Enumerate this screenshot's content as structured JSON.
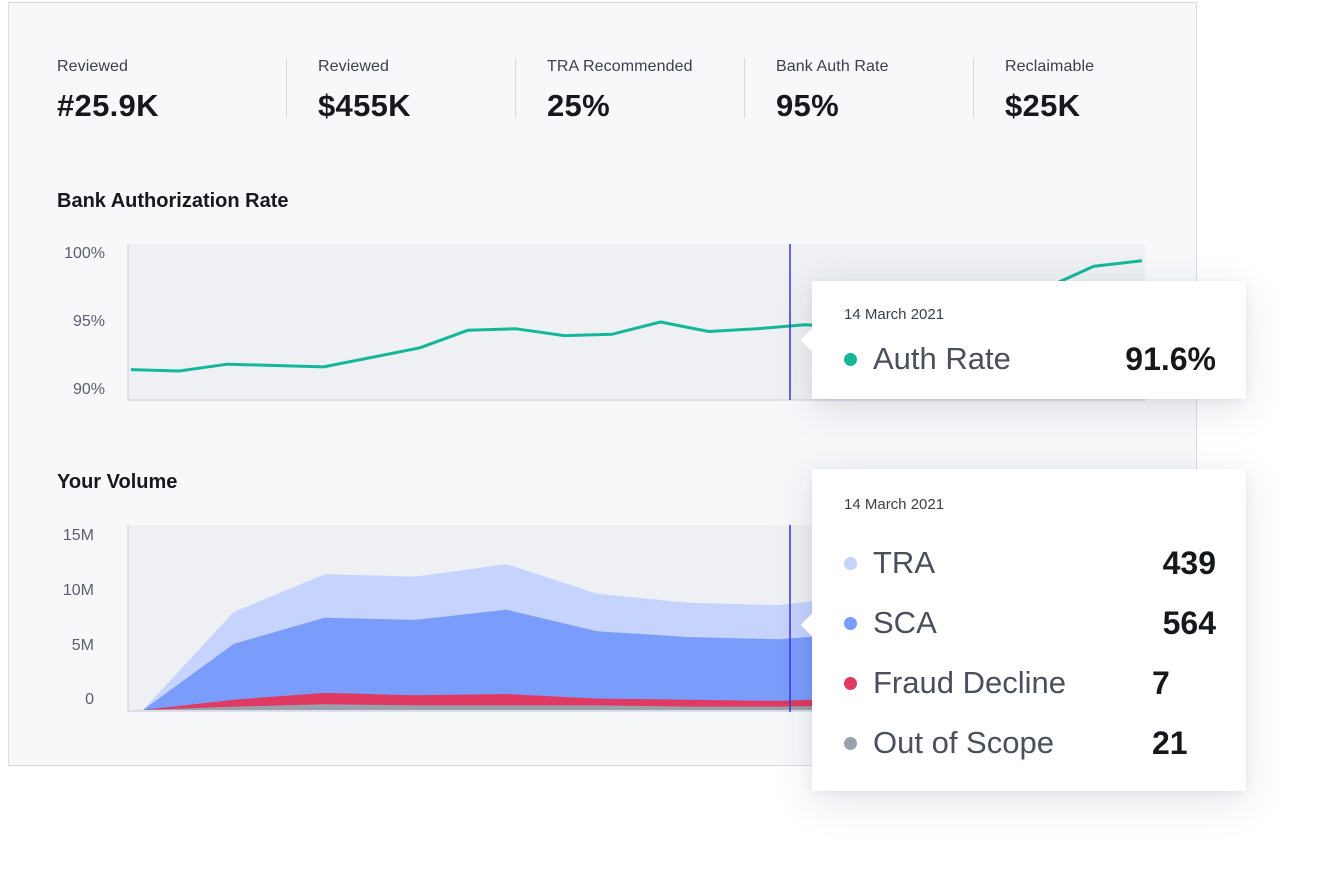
{
  "metrics": [
    {
      "label": "Reviewed",
      "value": "#25.9K"
    },
    {
      "label": "Reviewed",
      "value": "$455K"
    },
    {
      "label": "TRA Recommended",
      "value": "25%"
    },
    {
      "label": "Bank Auth Rate",
      "value": "95%"
    },
    {
      "label": "Reclaimable",
      "value": "$25K"
    }
  ],
  "auth_chart": {
    "title": "Bank Authorization Rate",
    "ticks": [
      "100%",
      "95%",
      "90%"
    ]
  },
  "volume_chart": {
    "title": "Your Volume",
    "ticks": [
      "15M",
      "10M",
      "5M",
      "0"
    ]
  },
  "auth_tooltip": {
    "date": "14 March 2021",
    "label": "Auth Rate",
    "value": "91.6%"
  },
  "volume_tooltip": {
    "date": "14 March 2021",
    "rows": [
      {
        "label": "TRA",
        "value": "439"
      },
      {
        "label": "SCA",
        "value": "564"
      },
      {
        "label": "Fraud Decline",
        "value": "7"
      },
      {
        "label": "Out of Scope",
        "value": "21"
      }
    ]
  },
  "colors": {
    "auth_line": "#14b898",
    "tra": "#c5d3fd",
    "sca": "#7a9cfb",
    "fraud_decline": "#e03a62",
    "out_of_scope": "#9aa1ae",
    "cursor": "#3c34d6"
  },
  "chart_data": [
    {
      "type": "line",
      "title": "Bank Authorization Rate",
      "ylim": [
        90,
        100
      ],
      "yticks": [
        100,
        95,
        90
      ],
      "grid": false,
      "series": [
        {
          "name": "Auth Rate",
          "values": [
            91.5,
            91.4,
            91.9,
            91.8,
            91.7,
            92.4,
            93.1,
            94.4,
            94.5,
            94.0,
            94.1,
            95.0,
            94.3,
            94.5,
            94.8,
            94.6,
            96.5,
            96.8,
            97.2,
            97.5,
            99.1,
            99.5
          ]
        }
      ]
    },
    {
      "type": "area",
      "title": "Your Volume",
      "ylim": [
        0,
        15
      ],
      "yticks": [
        15,
        10,
        5,
        0
      ],
      "stacked": false,
      "series": [
        {
          "name": "TRA",
          "values": [
            0,
            8.6,
            11.9,
            11.7,
            12.8,
            10.2,
            9.4,
            9.2,
            10.1,
            10.6,
            10.9,
            11.0
          ]
        },
        {
          "name": "SCA",
          "values": [
            0,
            5.8,
            8.1,
            7.9,
            8.8,
            6.9,
            6.4,
            6.2,
            6.8,
            7.1,
            7.3,
            7.4
          ]
        },
        {
          "name": "Fraud Decline",
          "values": [
            0,
            0.9,
            1.5,
            1.3,
            1.4,
            1.0,
            0.9,
            0.8,
            1.1,
            1.1,
            1.2,
            1.2
          ]
        },
        {
          "name": "Out of Scope",
          "values": [
            0,
            0.3,
            0.5,
            0.4,
            0.4,
            0.4,
            0.3,
            0.3,
            0.4,
            0.4,
            0.4,
            0.4
          ]
        }
      ]
    }
  ]
}
